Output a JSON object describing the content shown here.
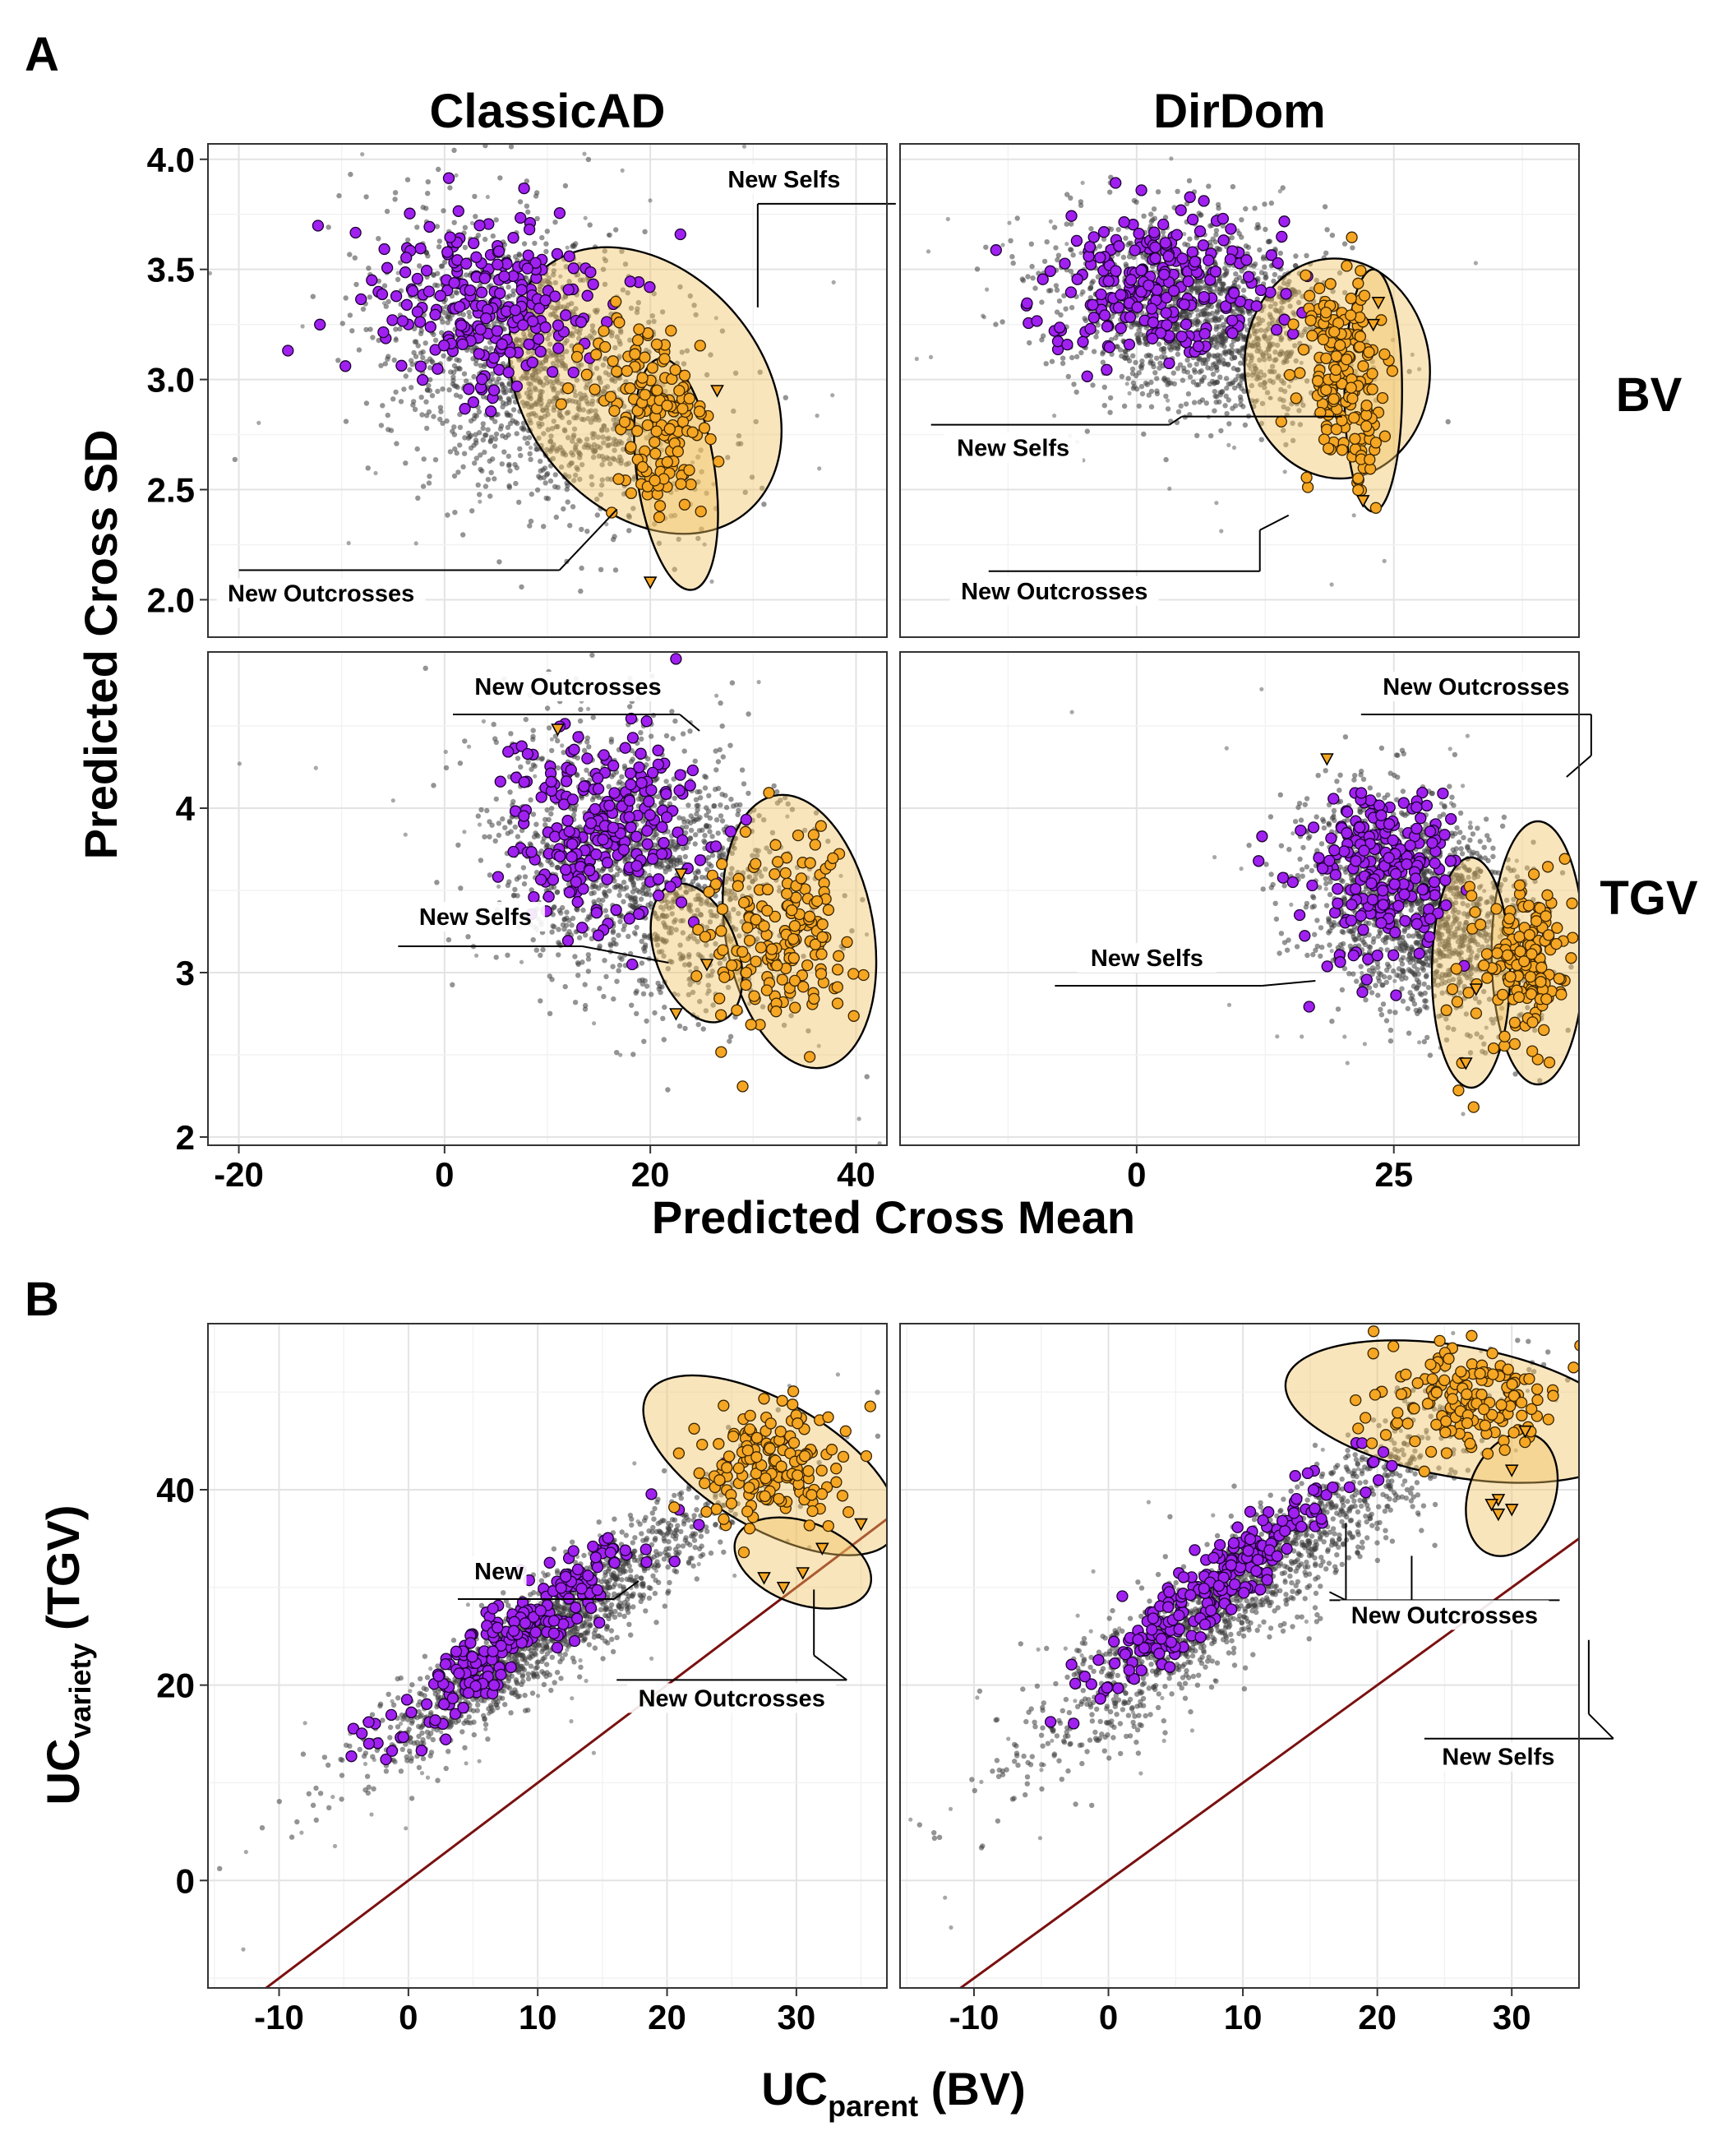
{
  "figure": {
    "panel_letters": [
      "A",
      "B"
    ],
    "legend_labels": {
      "outcross": "New Outcrosses",
      "self": "New Selfs"
    },
    "colors": {
      "background_points": "#3d3d3d",
      "parent_points": "#a020f0",
      "outcross_points": "#f5a623",
      "ellipse_fill": "#f0c060",
      "reference_line": "#7b1010"
    }
  },
  "panel_a": {
    "column_labels": [
      "ClassicAD",
      "DirDom"
    ],
    "row_labels": [
      "BV",
      "TGV"
    ],
    "xlabel": "Predicted Cross Mean",
    "ylabel": "Predicted Cross SD"
  },
  "panel_b": {
    "xlabel": {
      "main": "UC",
      "sub": "parent",
      "suffix": " (BV)"
    },
    "ylabel": {
      "main": "UC",
      "sub": "variety",
      "suffix": "  (TGV)"
    }
  },
  "chart_data": [
    {
      "id": "A-ClassicAD-BV",
      "type": "scatter",
      "panel": "A",
      "column": "ClassicAD",
      "row": "BV",
      "xlim": [
        -23,
        43
      ],
      "ylim": [
        1.83,
        4.07
      ],
      "xticks": [
        -20,
        0,
        20,
        40
      ],
      "yticks": [
        2.0,
        2.5,
        3.0,
        3.5,
        4.0
      ],
      "ytick_labels": [
        "2.0",
        "2.5",
        "3.0",
        "3.5",
        "4.0"
      ],
      "show_xticks": false,
      "show_yticks": true,
      "clouds": [
        {
          "cx": 9,
          "cy": 3.05,
          "sx": 7.5,
          "sy": 0.33,
          "rho": -0.35,
          "n": 1500
        }
      ],
      "purple": {
        "cx": 4,
        "cy": 3.35,
        "sx": 6,
        "sy": 0.22,
        "rho": 0,
        "n": 230
      },
      "orange": [
        {
          "cx": 21,
          "cy": 2.75,
          "sx": 2.4,
          "sy": 0.22,
          "rho": 0,
          "n": 130
        },
        {
          "cx": 17,
          "cy": 3.1,
          "sx": 3,
          "sy": 0.12,
          "rho": 0,
          "n": 30
        }
      ],
      "triangles": [
        [
          26.5,
          2.95
        ],
        [
          20,
          2.08
        ]
      ],
      "ellipses": [
        {
          "cx": 19.5,
          "cy": 2.95,
          "rx": 11.5,
          "ry": 0.72,
          "angle": -40
        },
        {
          "cx": 22.5,
          "cy": 2.57,
          "rx": 3.8,
          "ry": 0.53,
          "angle": -8
        }
      ],
      "callouts": [
        {
          "kind": "self",
          "x": 33,
          "y": 3.88
        },
        {
          "kind": "outcross",
          "x": -12,
          "y": 2.0
        }
      ]
    },
    {
      "id": "A-DirDom-BV",
      "type": "scatter",
      "panel": "A",
      "column": "DirDom",
      "row": "BV",
      "xlim": [
        -23,
        43
      ],
      "ylim": [
        1.83,
        4.07
      ],
      "xticks": [
        0,
        25
      ],
      "yticks": [
        2.0,
        2.5,
        3.0,
        3.5,
        4.0
      ],
      "show_xticks": false,
      "show_yticks": false,
      "clouds": [
        {
          "cx": 6,
          "cy": 3.3,
          "sx": 6.5,
          "sy": 0.22,
          "rho": -0.25,
          "n": 1500
        }
      ],
      "purple": {
        "cx": 2,
        "cy": 3.45,
        "sx": 5.5,
        "sy": 0.16,
        "rho": 0,
        "n": 230
      },
      "orange": [
        {
          "cx": 20,
          "cy": 3.05,
          "sx": 2.2,
          "sy": 0.2,
          "rho": 0,
          "n": 150
        },
        {
          "cx": 22,
          "cy": 2.85,
          "sx": 0.9,
          "sy": 0.25,
          "rho": 0,
          "n": 30
        }
      ],
      "triangles": [
        [
          23.5,
          3.35
        ],
        [
          23,
          3.25
        ],
        [
          22,
          2.45
        ]
      ],
      "ellipses": [
        {
          "cx": 19.5,
          "cy": 3.05,
          "rx": 9,
          "ry": 0.5,
          "angle": -5
        },
        {
          "cx": 23,
          "cy": 2.95,
          "rx": 2.8,
          "ry": 0.55,
          "angle": 0
        }
      ],
      "callouts": [
        {
          "kind": "self",
          "x": -12,
          "y": 2.66
        },
        {
          "kind": "outcross",
          "x": -8,
          "y": 2.01
        }
      ]
    },
    {
      "id": "A-ClassicAD-TGV",
      "type": "scatter",
      "panel": "A",
      "column": "ClassicAD",
      "row": "TGV",
      "xlim": [
        -23,
        43
      ],
      "ylim": [
        1.95,
        4.95
      ],
      "xticks": [
        -20,
        0,
        20,
        40
      ],
      "yticks": [
        2,
        3,
        4
      ],
      "ytick_labels": [
        "2",
        "3",
        "4"
      ],
      "show_xticks": true,
      "show_yticks": true,
      "clouds": [
        {
          "cx": 19,
          "cy": 3.65,
          "sx": 7,
          "sy": 0.4,
          "rho": -0.2,
          "n": 1500
        }
      ],
      "purple": {
        "cx": 15,
        "cy": 3.85,
        "sx": 5,
        "sy": 0.3,
        "rho": 0,
        "n": 230
      },
      "orange": [
        {
          "cx": 33,
          "cy": 3.2,
          "sx": 3.2,
          "sy": 0.28,
          "rho": 0,
          "n": 150
        },
        {
          "cx": 27,
          "cy": 3.0,
          "sx": 2,
          "sy": 0.25,
          "rho": 0,
          "n": 20
        }
      ],
      "triangles": [
        [
          11,
          4.48
        ],
        [
          23,
          3.6
        ],
        [
          25.5,
          3.05
        ],
        [
          22.5,
          2.75
        ]
      ],
      "ellipses": [
        {
          "cx": 34.5,
          "cy": 3.25,
          "rx": 7.2,
          "ry": 0.84,
          "angle": -10
        },
        {
          "cx": 24.5,
          "cy": 3.12,
          "rx": 4,
          "ry": 0.44,
          "angle": -20
        }
      ],
      "callouts": [
        {
          "kind": "outcross",
          "x": 12,
          "y": 4.7
        },
        {
          "kind": "self",
          "x": 3,
          "y": 3.3
        }
      ]
    },
    {
      "id": "A-DirDom-TGV",
      "type": "scatter",
      "panel": "A",
      "column": "DirDom",
      "row": "TGV",
      "xlim": [
        -23,
        43
      ],
      "ylim": [
        1.95,
        4.95
      ],
      "xticks": [
        0,
        25
      ],
      "yticks": [
        2,
        3,
        4
      ],
      "xtick_labels": [
        "0",
        "25"
      ],
      "show_xticks": true,
      "show_yticks": false,
      "clouds": [
        {
          "cx": 27,
          "cy": 3.4,
          "sx": 5.5,
          "sy": 0.32,
          "rho": -0.3,
          "n": 1500
        }
      ],
      "purple": {
        "cx": 24,
        "cy": 3.6,
        "sx": 4,
        "sy": 0.25,
        "rho": 0,
        "n": 230
      },
      "orange": [
        {
          "cx": 38,
          "cy": 3.05,
          "sx": 1.8,
          "sy": 0.25,
          "rho": 0,
          "n": 150
        },
        {
          "cx": 33,
          "cy": 2.9,
          "sx": 1.5,
          "sy": 0.3,
          "rho": 0,
          "n": 20
        }
      ],
      "triangles": [
        [
          18.5,
          4.3
        ],
        [
          33,
          2.9
        ],
        [
          32,
          2.45
        ]
      ],
      "ellipses": [
        {
          "cx": 39,
          "cy": 3.12,
          "rx": 4.5,
          "ry": 0.8,
          "angle": 0
        },
        {
          "cx": 32.5,
          "cy": 3.0,
          "rx": 3.8,
          "ry": 0.7,
          "angle": 0
        }
      ],
      "callouts": [
        {
          "kind": "outcross",
          "x": 33,
          "y": 4.7
        },
        {
          "kind": "self",
          "x": 1,
          "y": 3.05
        }
      ]
    },
    {
      "id": "B-left",
      "type": "scatter",
      "panel": "B",
      "xlim": [
        -15.5,
        37
      ],
      "ylim": [
        -11,
        57
      ],
      "xticks": [
        -10,
        0,
        10,
        20,
        30
      ],
      "yticks": [
        0,
        20,
        40
      ],
      "show_xticks": true,
      "show_yticks": true,
      "diagonal": {
        "slope": 1,
        "intercept": 0
      },
      "clouds": [
        {
          "cx": 10,
          "cy": 25,
          "sx": 7,
          "sy": 7,
          "rho": 0.93,
          "n": 1500
        }
      ],
      "purple": {
        "cx": 8,
        "cy": 25,
        "sx": 5,
        "sy": 5.5,
        "rho": 0.92,
        "n": 230
      },
      "orange": [
        {
          "cx": 28,
          "cy": 42,
          "sx": 3,
          "sy": 3,
          "rho": 0,
          "n": 150
        }
      ],
      "triangles": [
        [
          35,
          36.5
        ],
        [
          32,
          34
        ],
        [
          30.5,
          31.5
        ],
        [
          29,
          30
        ],
        [
          27.5,
          31
        ]
      ],
      "ellipses": [
        {
          "cx": 28,
          "cy": 42.5,
          "rx": 11,
          "ry": 6.5,
          "angle": 30
        },
        {
          "cx": 30.5,
          "cy": 32.5,
          "rx": 5.5,
          "ry": 4.2,
          "angle": 20
        }
      ],
      "callouts": [
        {
          "kind": "outcross",
          "x": 25,
          "y": 18
        },
        {
          "kind": "outcross",
          "x": 7,
          "y": 31,
          "text": "New"
        }
      ]
    },
    {
      "id": "B-right",
      "type": "scatter",
      "panel": "B",
      "xlim": [
        -15.5,
        35
      ],
      "ylim": [
        -11,
        57
      ],
      "xticks": [
        -10,
        0,
        10,
        20,
        30
      ],
      "yticks": [
        0,
        20,
        40
      ],
      "show_xticks": true,
      "show_yticks": false,
      "diagonal": {
        "slope": 1,
        "intercept": 0
      },
      "clouds": [
        {
          "cx": 10,
          "cy": 30,
          "sx": 8,
          "sy": 9,
          "rho": 0.93,
          "n": 1500
        }
      ],
      "purple": {
        "cx": 8,
        "cy": 30,
        "sx": 5.5,
        "sy": 6.5,
        "rho": 0.95,
        "n": 230
      },
      "orange": [
        {
          "cx": 27,
          "cy": 49.5,
          "sx": 3.5,
          "sy": 2.5,
          "rho": 0,
          "n": 150
        }
      ],
      "triangles": [
        [
          31,
          46
        ],
        [
          30,
          42
        ],
        [
          29,
          39
        ],
        [
          28.5,
          38.5
        ],
        [
          30,
          38
        ],
        [
          29,
          37.5
        ]
      ],
      "ellipses": [
        {
          "cx": 26,
          "cy": 48,
          "rx": 13,
          "ry": 6.7,
          "angle": 10
        },
        {
          "cx": 30,
          "cy": 39.5,
          "rx": 3.2,
          "ry": 6.5,
          "angle": 20
        }
      ],
      "callouts": [
        {
          "kind": "outcross",
          "x": 25,
          "y": 26.5
        },
        {
          "kind": "self",
          "x": 29,
          "y": 12
        }
      ]
    }
  ]
}
